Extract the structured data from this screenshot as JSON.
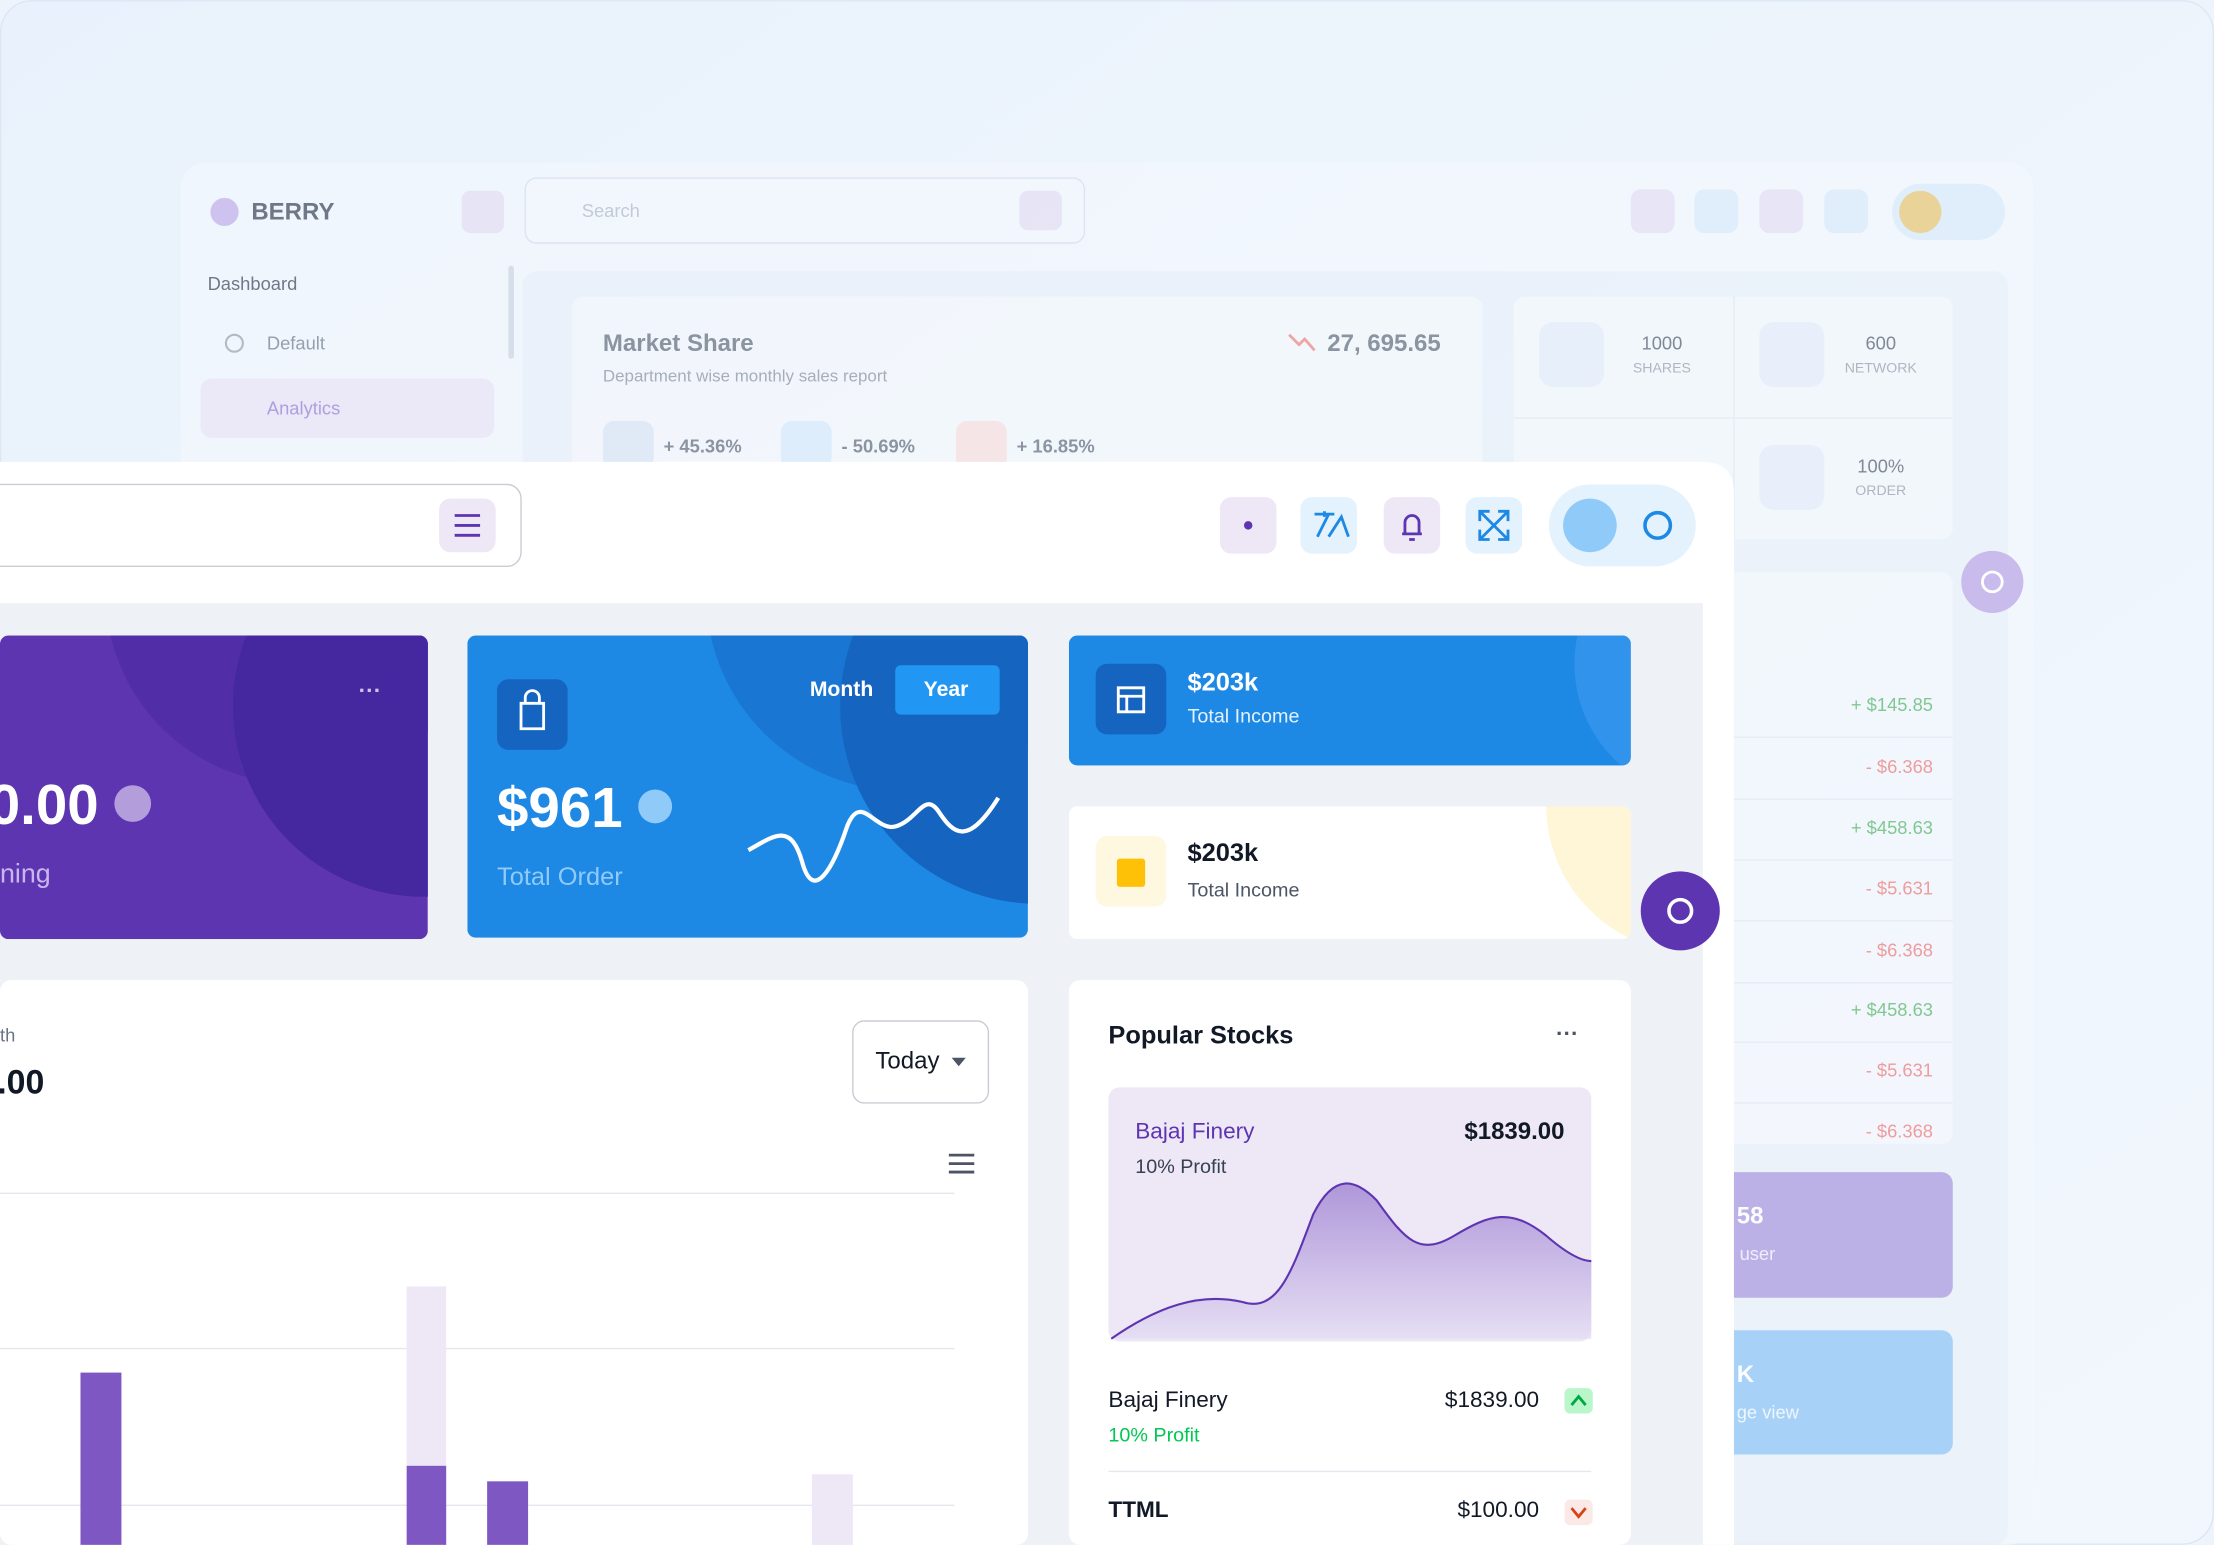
{
  "background_app": {
    "brand": "BERRY",
    "search_placeholder": "Search",
    "sidebar": {
      "heading": "Dashboard",
      "items": [
        "Default",
        "Analytics"
      ]
    },
    "market_share": {
      "title": "Market Share",
      "subtitle": "Department wise monthly sales report",
      "total": "27, 695.65",
      "stats": [
        "+ 45.36%",
        "- 50.69%",
        "+ 16.85%"
      ]
    },
    "stat_tiles": [
      {
        "value": "1000",
        "label": "SHARES"
      },
      {
        "value": "600",
        "label": "NETWORK"
      },
      {
        "value": "100%",
        "label": "ORDER"
      }
    ],
    "changes": [
      "+ $145.85",
      "- $6.368",
      "+ $458.63",
      "- $5.631",
      "- $6.368",
      "+ $458.63",
      "- $5.631",
      "- $6.368"
    ],
    "cards": [
      {
        "value": "58",
        "label": "user"
      },
      {
        "value": "K",
        "label": "ge view"
      }
    ]
  },
  "foreground_app": {
    "earning_card": {
      "value": "0.00",
      "label": "ning"
    },
    "order_card": {
      "toggle": [
        "Month",
        "Year"
      ],
      "value": "$961",
      "label": "Total Order"
    },
    "income_cards": [
      {
        "value": "$203k",
        "label": "Total Income"
      },
      {
        "value": "$203k",
        "label": "Total Income"
      }
    ],
    "growth": {
      "label": "th",
      "value": ".00",
      "period": "Today"
    },
    "popular_stocks": {
      "title": "Popular Stocks",
      "featured": {
        "name": "Bajaj Finery",
        "profit": "10% Profit",
        "price": "$1839.00"
      },
      "list": [
        {
          "name": "Bajaj Finery",
          "price": "$1839.00",
          "profit": "10% Profit"
        },
        {
          "name": "TTML",
          "price": "$100.00"
        }
      ]
    }
  }
}
